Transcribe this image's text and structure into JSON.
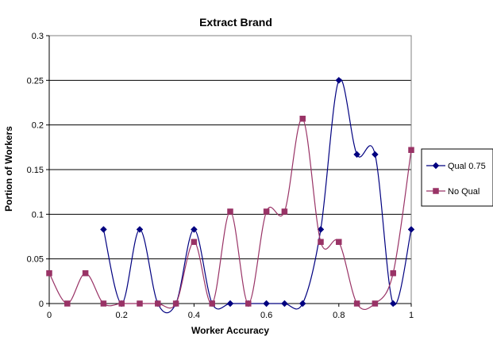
{
  "chart_data": {
    "type": "line",
    "title": "Extract Brand",
    "xlabel": "Worker Accuracy",
    "ylabel": "Portion of Workers",
    "xlim": [
      0,
      1
    ],
    "ylim": [
      0,
      0.3
    ],
    "x_ticks": [
      "0",
      "0.2",
      "0.4",
      "0.6",
      "0.8",
      "1"
    ],
    "y_ticks": [
      "0",
      "0.05",
      "0.1",
      "0.15",
      "0.2",
      "0.25",
      "0.3"
    ],
    "x_tick_values": [
      0,
      0.2,
      0.4,
      0.6,
      0.8,
      1
    ],
    "y_tick_values": [
      0,
      0.05,
      0.1,
      0.15,
      0.2,
      0.25,
      0.3
    ],
    "grid": "horizontal major gridlines",
    "legend_position": "right",
    "smoothed": true,
    "series": [
      {
        "name": "Qual 0.75",
        "color": "#000080",
        "marker": "diamond",
        "x": [
          0.15,
          0.2,
          0.25,
          0.3,
          0.35,
          0.4,
          0.45,
          0.5,
          0.55,
          0.6,
          0.65,
          0.7,
          0.75,
          0.8,
          0.85,
          0.9,
          0.95,
          1
        ],
        "y": [
          0.083,
          0,
          0.083,
          0,
          0,
          0.083,
          0,
          0,
          0,
          0,
          0,
          0,
          0.083,
          0.25,
          0.167,
          0.167,
          0,
          0.083
        ]
      },
      {
        "name": "No Qual",
        "color": "#993366",
        "marker": "square",
        "x": [
          0,
          0.05,
          0.1,
          0.15,
          0.2,
          0.25,
          0.3,
          0.35,
          0.4,
          0.45,
          0.5,
          0.55,
          0.6,
          0.65,
          0.7,
          0.75,
          0.8,
          0.85,
          0.9,
          0.95,
          1
        ],
        "y": [
          0.034,
          0,
          0.034,
          0,
          0,
          0,
          0,
          0,
          0.069,
          0,
          0.103,
          0,
          0.103,
          0.103,
          0.207,
          0.069,
          0.069,
          0,
          0,
          0.034,
          0.172
        ]
      }
    ]
  },
  "colors": {
    "plot_border": "#808080",
    "gridline": "#000000",
    "axis": "#000000"
  }
}
